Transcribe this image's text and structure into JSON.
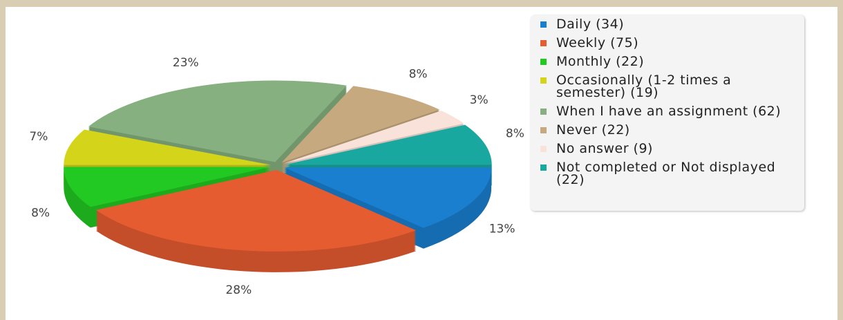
{
  "chart_data": {
    "type": "pie",
    "categories": [
      "Daily (34)",
      "Weekly (75)",
      "Monthly (22)",
      "Occasionally (1-2 times a semester) (19)",
      "When I have an assignment (62)",
      "Never (22)",
      "No answer (9)",
      "Not completed or Not displayed (22)"
    ],
    "values": [
      13,
      28,
      8,
      7,
      23,
      8,
      3,
      8
    ],
    "value_labels": [
      "13%",
      "28%",
      "8%",
      "7%",
      "23%",
      "8%",
      "3%",
      "8%"
    ],
    "colors": [
      "#1a7fcf",
      "#e55c30",
      "#22c922",
      "#d4d41a",
      "#86b07f",
      "#c7a97f",
      "#f8e2da",
      "#19a89f"
    ],
    "legend": "right"
  }
}
